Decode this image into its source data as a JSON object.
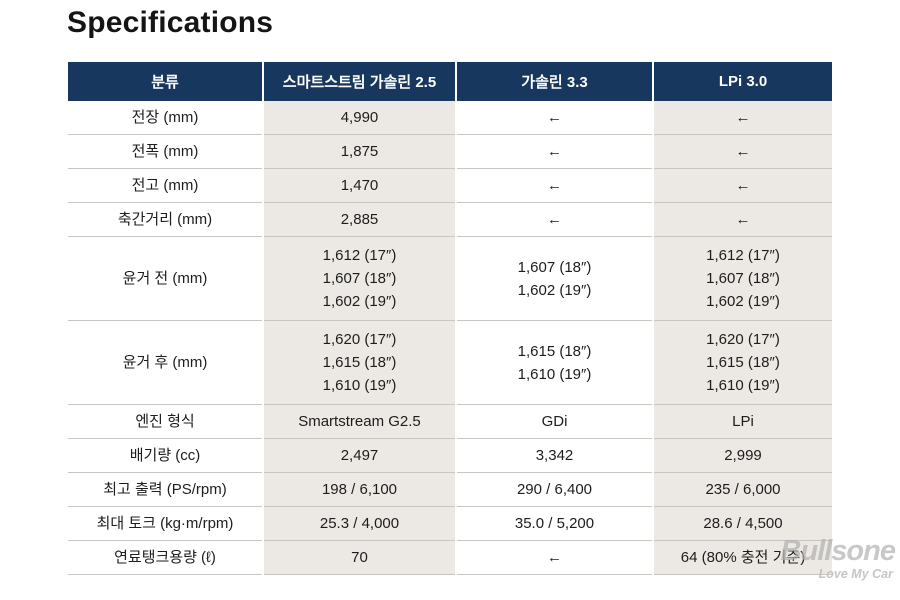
{
  "page_title": "Specifications",
  "table": {
    "columns": [
      "분류",
      "스마트스트림 가솔린 2.5",
      "가솔린 3.3",
      "LPi 3.0"
    ],
    "rows": [
      {
        "label": "전장 (mm)",
        "values": [
          "4,990",
          "←",
          "←"
        ]
      },
      {
        "label": "전폭 (mm)",
        "values": [
          "1,875",
          "←",
          "←"
        ]
      },
      {
        "label": "전고 (mm)",
        "values": [
          "1,470",
          "←",
          "←"
        ]
      },
      {
        "label": "축간거리 (mm)",
        "values": [
          "2,885",
          "←",
          "←"
        ]
      },
      {
        "label": "윤거 전 (mm)",
        "values": [
          [
            "1,612 (17″)",
            "1,607 (18″)",
            "1,602 (19″)"
          ],
          [
            "1,607 (18″)",
            "1,602 (19″)"
          ],
          [
            "1,612 (17″)",
            "1,607 (18″)",
            "1,602 (19″)"
          ]
        ]
      },
      {
        "label": "윤거 후 (mm)",
        "values": [
          [
            "1,620 (17″)",
            "1,615 (18″)",
            "1,610 (19″)"
          ],
          [
            "1,615 (18″)",
            "1,610 (19″)"
          ],
          [
            "1,620 (17″)",
            "1,615 (18″)",
            "1,610 (19″)"
          ]
        ]
      },
      {
        "label": "엔진 형식",
        "values": [
          "Smartstream G2.5",
          "GDi",
          "LPi"
        ]
      },
      {
        "label": "배기량 (cc)",
        "values": [
          "2,497",
          "3,342",
          "2,999"
        ]
      },
      {
        "label": "최고 출력 (PS/rpm)",
        "values": [
          "198 / 6,100",
          "290 / 6,400",
          "235 / 6,000"
        ]
      },
      {
        "label": "최대 토크 (kg·m/rpm)",
        "values": [
          "25.3 / 4,000",
          "35.0 / 5,200",
          "28.6 / 4,500"
        ]
      },
      {
        "label": "연료탱크용량 (ℓ)",
        "values": [
          "70",
          "←",
          "64 (80% 충전 기준)"
        ]
      }
    ],
    "shaded_value_columns": [
      0,
      2
    ]
  },
  "watermark": {
    "brand": "Bullsone",
    "tagline": "Love My Car"
  },
  "colors": {
    "header_bg": "#17375e",
    "header_text": "#ffffff",
    "shaded_column_bg": "#ece9e4",
    "row_line": "#c8c6c2",
    "body_text": "#1d1d1d",
    "title_text": "#151515",
    "watermark_text": "#b3b3b3"
  }
}
